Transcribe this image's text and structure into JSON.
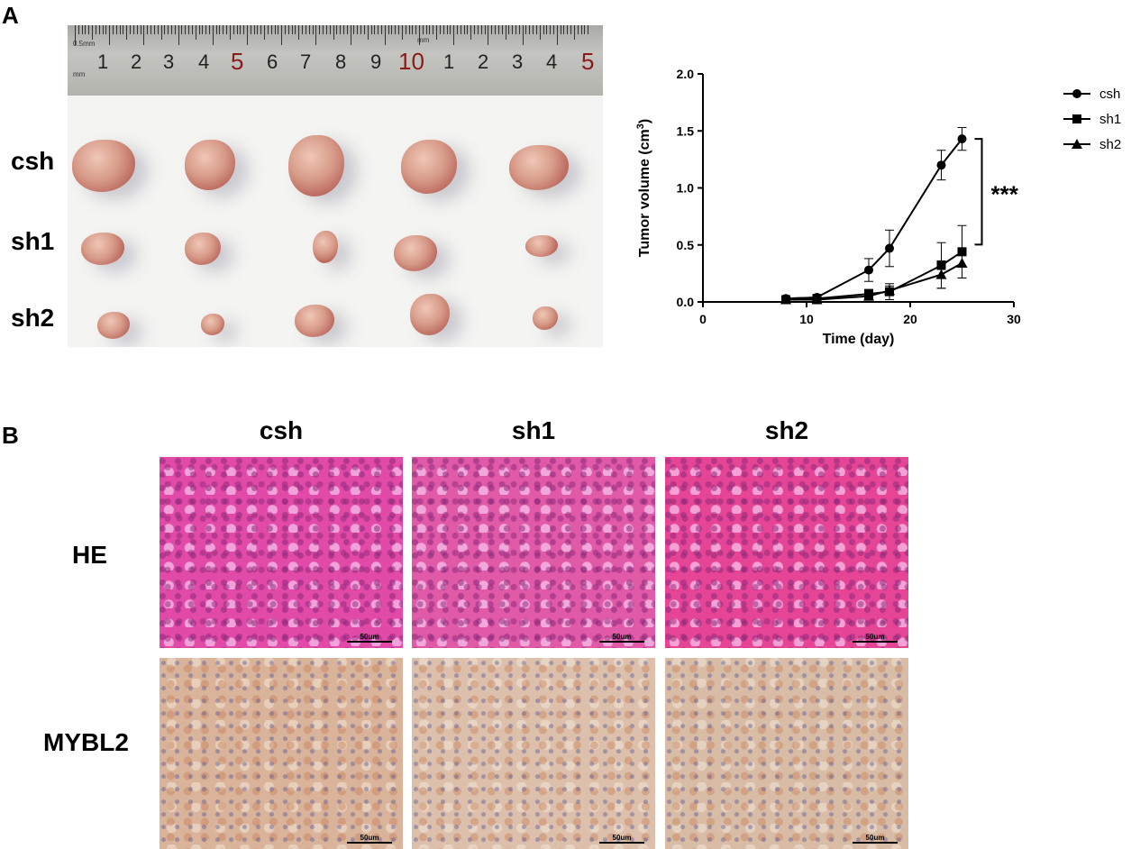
{
  "panels": {
    "a": "A",
    "b": "B"
  },
  "photo": {
    "row_labels": [
      "csh",
      "sh1",
      "sh2"
    ],
    "ruler_numbers": [
      "1",
      "2",
      "3",
      "4",
      "5",
      "6",
      "7",
      "8",
      "9",
      "10",
      "1",
      "2",
      "3",
      "4",
      "5"
    ],
    "ruler_unit_1": "0.5mm",
    "ruler_unit_2": "mm",
    "ruler_unit_3": "mm"
  },
  "chart_data": {
    "type": "line",
    "xlabel": "Time (day)",
    "ylabel": "Tumor volume (cm3)",
    "xlim": [
      0,
      30
    ],
    "ylim": [
      0,
      2.0
    ],
    "xticks": [
      "0",
      "10",
      "20",
      "30"
    ],
    "yticks": [
      "0.0",
      "0.5",
      "1.0",
      "1.5",
      "2.0"
    ],
    "x": [
      8,
      11,
      16,
      18,
      23,
      25
    ],
    "series": [
      {
        "name": "csh",
        "marker": "circle",
        "values": [
          0.03,
          0.04,
          0.28,
          0.47,
          1.2,
          1.43
        ],
        "errors": [
          0.01,
          0.01,
          0.1,
          0.16,
          0.13,
          0.1
        ]
      },
      {
        "name": "sh1",
        "marker": "square",
        "values": [
          0.02,
          0.03,
          0.07,
          0.09,
          0.32,
          0.44
        ],
        "errors": [
          0.01,
          0.01,
          0.04,
          0.07,
          0.2,
          0.23
        ]
      },
      {
        "name": "sh2",
        "marker": "triangle",
        "values": [
          0.02,
          0.02,
          0.05,
          0.1,
          0.24,
          0.34
        ],
        "errors": [
          0.01,
          0.01,
          0.03,
          0.04,
          0.12,
          0.13
        ]
      }
    ],
    "annotation": "***",
    "legend_position": "top-right",
    "grid": false
  },
  "histology": {
    "columns": [
      "csh",
      "sh1",
      "sh2"
    ],
    "rows": [
      "HE",
      "MYBL2"
    ],
    "scale_label": "50um"
  }
}
